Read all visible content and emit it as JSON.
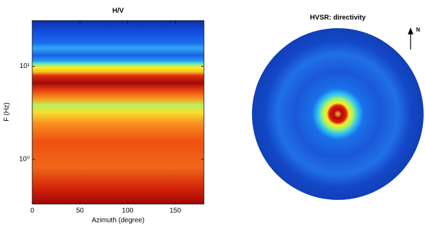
{
  "chart_data": [
    {
      "type": "heatmap",
      "title": "H/V",
      "x_label": "Azimuth (degree)",
      "y_label": "F (Hz)",
      "xlim": [
        0,
        180
      ],
      "xticks": [
        0,
        50,
        100,
        150
      ],
      "ylim": [
        0.33,
        31
      ],
      "y_scale": "log",
      "yticks": [
        {
          "value": 1,
          "label": "10⁰"
        },
        {
          "value": 10,
          "label": "10¹"
        }
      ]
    },
    {
      "type": "polar",
      "title": "HVSR: directivity",
      "north_label": "N"
    }
  ]
}
